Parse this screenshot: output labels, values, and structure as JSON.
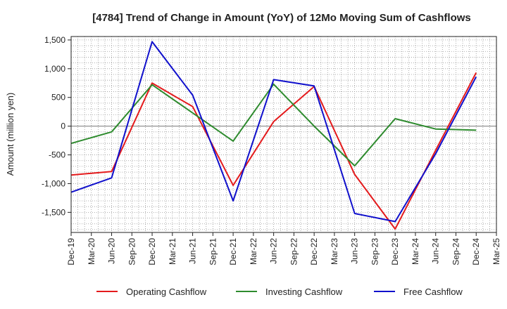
{
  "chart_data": {
    "type": "line",
    "title": "[4784]  Trend of Change in Amount (YoY) of 12Mo Moving Sum of Cashflows",
    "xlabel": "",
    "ylabel": "Amount (million yen)",
    "ylim": [
      -1850,
      1560
    ],
    "yticks": [
      1500,
      1000,
      500,
      0,
      -500,
      -1000,
      -1500
    ],
    "ytick_labels": [
      "1,500",
      "1,000",
      "500",
      "0",
      "-500",
      "-1,000",
      "-1,500"
    ],
    "categories": [
      "Dec-19",
      "Mar-20",
      "Jun-20",
      "Sep-20",
      "Dec-20",
      "Mar-21",
      "Jun-21",
      "Sep-21",
      "Dec-21",
      "Mar-22",
      "Jun-22",
      "Sep-22",
      "Dec-22",
      "Mar-23",
      "Jun-23",
      "Sep-23",
      "Dec-23",
      "Mar-24",
      "Jun-24",
      "Sep-24",
      "Dec-24",
      "Mar-25"
    ],
    "grid": true,
    "legend_position": "bottom",
    "series": [
      {
        "name": "Operating Cashflow",
        "color": "#e41a1c",
        "points": [
          [
            0,
            -850
          ],
          [
            2,
            -790
          ],
          [
            4,
            750
          ],
          [
            6,
            340
          ],
          [
            8,
            -1030
          ],
          [
            10,
            80
          ],
          [
            12,
            690
          ],
          [
            14,
            -840
          ],
          [
            16,
            -1790
          ],
          [
            18,
            -420
          ],
          [
            20,
            930
          ]
        ]
      },
      {
        "name": "Investing Cashflow",
        "color": "#2e8b2e",
        "points": [
          [
            0,
            -300
          ],
          [
            2,
            -100
          ],
          [
            4,
            720
          ],
          [
            6,
            230
          ],
          [
            8,
            -260
          ],
          [
            10,
            730
          ],
          [
            12,
            0
          ],
          [
            14,
            -690
          ],
          [
            16,
            130
          ],
          [
            18,
            -50
          ],
          [
            20,
            -70
          ]
        ]
      },
      {
        "name": "Free Cashflow",
        "color": "#1010cc",
        "points": [
          [
            0,
            -1150
          ],
          [
            2,
            -900
          ],
          [
            4,
            1470
          ],
          [
            6,
            540
          ],
          [
            8,
            -1300
          ],
          [
            10,
            810
          ],
          [
            12,
            700
          ],
          [
            14,
            -1520
          ],
          [
            16,
            -1660
          ],
          [
            18,
            -480
          ],
          [
            20,
            860
          ]
        ]
      }
    ]
  }
}
